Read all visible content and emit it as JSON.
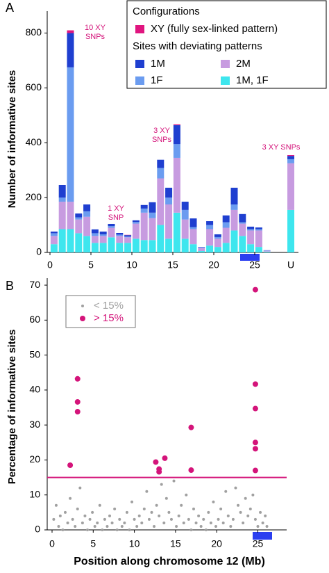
{
  "chart_data": [
    {
      "type": "stacked_bar",
      "panel": "A",
      "ylabel": "Number of informative sites",
      "x": [
        0.5,
        1.5,
        2.5,
        3.5,
        4.5,
        5.5,
        6.5,
        7.5,
        8.5,
        9.5,
        10.5,
        11.5,
        12.5,
        13.5,
        14.5,
        15.5,
        16.5,
        17.5,
        18.5,
        19.5,
        20.5,
        21.5,
        22.5,
        23.5,
        24.5,
        25.5,
        26.5
      ],
      "xlim": [
        0,
        30
      ],
      "xticks": [
        0,
        5,
        10,
        15,
        20,
        25
      ],
      "ylim": [
        0,
        880
      ],
      "yticks": [
        0,
        200,
        400,
        600,
        800
      ],
      "series": [
        {
          "name": "1M, 1F",
          "color": "#3ee6ee",
          "values": [
            30,
            85,
            85,
            70,
            60,
            35,
            35,
            55,
            35,
            35,
            50,
            45,
            45,
            100,
            50,
            145,
            50,
            30,
            5,
            25,
            20,
            35,
            80,
            60,
            30,
            20,
            3
          ]
        },
        {
          "name": "2M",
          "color": "#c79be0",
          "values": [
            30,
            100,
            100,
            50,
            70,
            25,
            25,
            35,
            25,
            20,
            55,
            100,
            80,
            170,
            125,
            200,
            70,
            55,
            12,
            60,
            30,
            55,
            75,
            45,
            50,
            60,
            3
          ]
        },
        {
          "name": "1F",
          "color": "#6b9cf0",
          "values": [
            10,
            15,
            490,
            8,
            20,
            10,
            6,
            6,
            5,
            3,
            6,
            15,
            20,
            38,
            25,
            50,
            35,
            7,
            2,
            15,
            6,
            20,
            20,
            5,
            5,
            5,
            1
          ]
        },
        {
          "name": "1M",
          "color": "#1f3fd0",
          "values": [
            6,
            46,
            125,
            14,
            25,
            14,
            10,
            8,
            6,
            5,
            6,
            13,
            38,
            30,
            36,
            69,
            30,
            32,
            1,
            14,
            10,
            25,
            61,
            30,
            9,
            6,
            1
          ]
        },
        {
          "name": "XY (fully sex-linked pattern)",
          "color": "#e0157f",
          "values": [
            0,
            0,
            10,
            0,
            0,
            0,
            0,
            0,
            0,
            1,
            0,
            0,
            0,
            0,
            0,
            3,
            0,
            0,
            0,
            0,
            0,
            0,
            0,
            0,
            0,
            0,
            0
          ]
        }
      ],
      "u_bar": {
        "label": "U",
        "values": [
          155,
          170,
          15,
          12,
          3
        ]
      },
      "legend": {
        "title": "Configurations",
        "subtitle": "Sites with deviating patterns"
      },
      "annotations": [
        {
          "lines": [
            "10 XY",
            "SNPs"
          ]
        },
        {
          "lines": [
            "1 XY",
            "SNP"
          ]
        },
        {
          "lines": [
            "3 XY",
            "SNPs"
          ]
        },
        {
          "lines": [
            "3 XY SNPs"
          ]
        }
      ]
    },
    {
      "type": "scatter",
      "panel": "B",
      "ylabel": "Percentage of informative sites",
      "xlabel": "Position along chromosome 12 (Mb)",
      "xlim": [
        0,
        28.5
      ],
      "xticks": [
        0,
        5,
        10,
        15,
        20,
        25
      ],
      "ylim": [
        0,
        72
      ],
      "yticks": [
        0,
        10,
        20,
        30,
        40,
        50,
        60,
        70
      ],
      "threshold": 15,
      "series": [
        {
          "name": "< 15%",
          "color": "#a0a0a0",
          "x": [
            0.2,
            0.5,
            0.8,
            1.0,
            1.3,
            1.6,
            1.9,
            2.2,
            2.5,
            2.8,
            3.1,
            3.4,
            3.7,
            4.0,
            4.3,
            4.6,
            4.9,
            5.2,
            5.5,
            5.8,
            6.1,
            6.4,
            6.7,
            7.0,
            7.3,
            7.6,
            7.9,
            8.2,
            8.5,
            8.8,
            9.1,
            9.4,
            9.7,
            10.0,
            10.3,
            10.6,
            10.9,
            11.2,
            11.5,
            11.8,
            12.1,
            12.4,
            12.7,
            13.0,
            13.3,
            13.6,
            13.9,
            14.2,
            14.5,
            14.8,
            15.1,
            15.4,
            15.7,
            16.0,
            16.3,
            16.6,
            16.9,
            17.2,
            17.5,
            17.8,
            18.1,
            18.4,
            18.7,
            19.0,
            19.3,
            19.6,
            19.9,
            20.2,
            20.5,
            20.8,
            21.1,
            21.4,
            21.7,
            22.0,
            22.3,
            22.6,
            22.9,
            23.2,
            23.5,
            23.8,
            24.1,
            24.4,
            24.7,
            25.0,
            25.3,
            25.6,
            25.9,
            26.1
          ],
          "values": [
            3,
            7,
            1,
            4,
            0,
            5,
            2,
            9,
            3,
            1,
            6,
            12,
            2,
            4,
            0,
            3,
            5,
            1,
            2,
            7,
            0,
            3,
            1,
            4,
            2,
            6,
            0,
            3,
            1,
            2,
            5,
            0,
            8,
            3,
            1,
            4,
            2,
            6,
            11,
            3,
            5,
            1,
            7,
            4,
            13,
            2,
            9,
            5,
            3,
            14,
            1,
            4,
            7,
            2,
            10,
            3,
            0,
            6,
            2,
            4,
            1,
            3,
            0,
            5,
            2,
            8,
            1,
            3,
            6,
            2,
            11,
            4,
            1,
            3,
            12,
            7,
            5,
            2,
            9,
            4,
            6,
            10,
            3,
            1,
            5,
            2,
            4,
            1
          ]
        },
        {
          "name": "> 15%",
          "color": "#d4147a",
          "x": [
            2.2,
            3.1,
            3.1,
            3.1,
            12.6,
            13.0,
            13.0,
            13.7,
            16.9,
            16.9,
            24.7,
            24.7,
            24.7,
            24.7,
            24.7,
            24.7
          ],
          "values": [
            18.5,
            43.2,
            36.6,
            33.8,
            19.4,
            17.4,
            16.6,
            20.5,
            29.3,
            17.1,
            68.7,
            41.7,
            34.7,
            25.0,
            23.2,
            17.0
          ]
        }
      ]
    }
  ]
}
